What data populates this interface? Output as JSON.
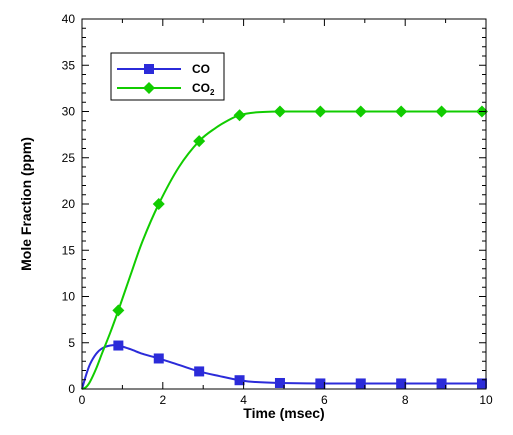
{
  "chart_data": {
    "type": "line",
    "xlabel": "Time (msec)",
    "ylabel": "Mole Fraction (ppm)",
    "xlim": [
      0,
      10
    ],
    "ylim": [
      0,
      40
    ],
    "xticks": [
      0,
      2,
      4,
      6,
      8,
      10
    ],
    "yticks": [
      0,
      5,
      10,
      15,
      20,
      25,
      30,
      35,
      40
    ],
    "grid": false,
    "legend_position": "top-left",
    "series": [
      {
        "name": "CO",
        "color": "#2b2bd9",
        "marker": "square",
        "curve": {
          "x": [
            0,
            0.1,
            0.2,
            0.35,
            0.5,
            0.7,
            0.9,
            1.2,
            1.5,
            1.9,
            2.4,
            2.9,
            3.4,
            3.9,
            4.3,
            4.9,
            6,
            7,
            8,
            9,
            10
          ],
          "y": [
            0,
            1.5,
            2.7,
            3.8,
            4.4,
            4.7,
            4.7,
            4.3,
            3.8,
            3.3,
            2.6,
            1.9,
            1.4,
            0.95,
            0.75,
            0.65,
            0.6,
            0.6,
            0.6,
            0.6,
            0.6
          ]
        },
        "markers": {
          "x": [
            0.9,
            1.9,
            2.9,
            3.9,
            4.9,
            5.9,
            6.9,
            7.9,
            8.9,
            9.9
          ],
          "y": [
            4.7,
            3.3,
            1.9,
            0.95,
            0.65,
            0.6,
            0.6,
            0.6,
            0.6,
            0.6
          ]
        }
      },
      {
        "name": "CO",
        "name_subscript": "2",
        "color": "#11cc00",
        "marker": "diamond",
        "curve": {
          "x": [
            0,
            0.1,
            0.2,
            0.35,
            0.5,
            0.7,
            0.9,
            1.2,
            1.5,
            1.9,
            2.4,
            2.9,
            3.3,
            3.6,
            3.9,
            4.3,
            4.9,
            6,
            7,
            8,
            9,
            10
          ],
          "y": [
            0,
            0.2,
            0.8,
            2.2,
            3.9,
            6.1,
            8.5,
            12.3,
            16,
            20,
            24,
            26.8,
            28.2,
            29,
            29.6,
            29.9,
            30,
            30,
            30,
            30,
            30,
            30
          ]
        },
        "markers": {
          "x": [
            0.9,
            1.9,
            2.9,
            3.9,
            4.9,
            5.9,
            6.9,
            7.9,
            8.9,
            9.9
          ],
          "y": [
            8.5,
            20,
            26.8,
            29.6,
            30,
            30,
            30,
            30,
            30,
            30
          ]
        }
      }
    ]
  }
}
